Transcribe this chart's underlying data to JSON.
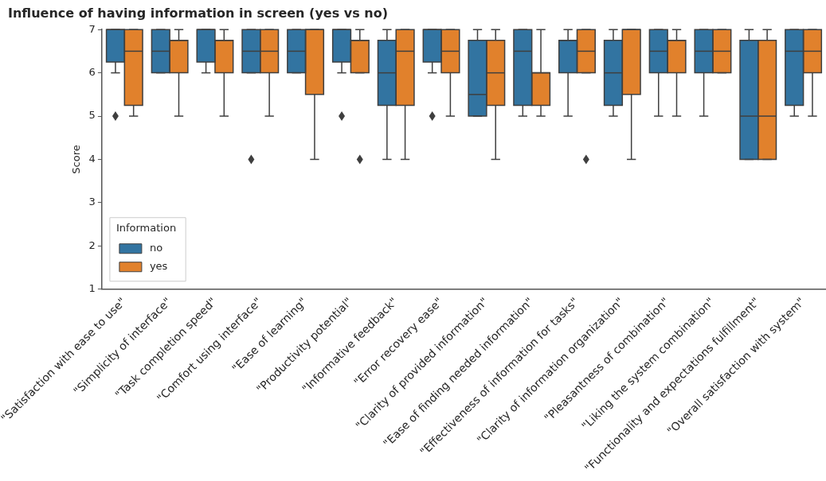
{
  "chart_data": {
    "type": "box",
    "title": "Influence of having information in screen (yes vs no)",
    "ylabel": "Score",
    "legend_title": "Information",
    "legend": "bottom left",
    "grid": false,
    "categories": [
      "\"Satisfaction with ease to use\"",
      "\"Simplicity of interface\"",
      "\"Task completion speed\"",
      "\"Comfort using interface\"",
      "\"Ease of learning\"",
      "\"Productivity potential\"",
      "\"Informative feedback\"",
      "\"Error recovery ease\"",
      "\"Clarity of provided information\"",
      "\"Ease of finding needed information\"",
      "\"Effectiveness of information for tasks\"",
      "\"Clarity of information organization\"",
      "\"Pleasantness of combination\"",
      "\"Liking the system combination\"",
      "\"Functionality and expectations fulfillment\"",
      "\"Overall satisfaction with system\""
    ],
    "ylim": [
      1,
      7
    ],
    "yticks": [
      1,
      2,
      3,
      4,
      5,
      6,
      7
    ],
    "series": [
      {
        "name": "no",
        "color": "#3274a1",
        "boxes": [
          {
            "low": 6,
            "q1": 6.25,
            "median": 7,
            "q3": 7,
            "high": 7,
            "outliers": [
              5
            ]
          },
          {
            "low": 6,
            "q1": 6,
            "median": 6.5,
            "q3": 7,
            "high": 7
          },
          {
            "low": 6,
            "q1": 6.25,
            "median": 7,
            "q3": 7,
            "high": 7
          },
          {
            "low": 6,
            "q1": 6,
            "median": 6.5,
            "q3": 7,
            "high": 7,
            "outliers": [
              4
            ]
          },
          {
            "low": 6,
            "q1": 6,
            "median": 6.5,
            "q3": 7,
            "high": 7
          },
          {
            "low": 6,
            "q1": 6.25,
            "median": 7,
            "q3": 7,
            "high": 7,
            "outliers": [
              5
            ]
          },
          {
            "low": 4,
            "q1": 5.25,
            "median": 6,
            "q3": 6.75,
            "high": 7
          },
          {
            "low": 6,
            "q1": 6.25,
            "median": 7,
            "q3": 7,
            "high": 7,
            "outliers": [
              5
            ]
          },
          {
            "low": 5,
            "q1": 5,
            "median": 5.5,
            "q3": 6.75,
            "high": 7
          },
          {
            "low": 5,
            "q1": 5.25,
            "median": 6.5,
            "q3": 7,
            "high": 7
          },
          {
            "low": 5,
            "q1": 6,
            "median": 6.75,
            "q3": 6.75,
            "high": 7
          },
          {
            "low": 5,
            "q1": 5.25,
            "median": 6,
            "q3": 6.75,
            "high": 7
          },
          {
            "low": 5,
            "q1": 6,
            "median": 6.5,
            "q3": 7,
            "high": 7
          },
          {
            "low": 5,
            "q1": 6,
            "median": 6.5,
            "q3": 7,
            "high": 7
          },
          {
            "low": 4,
            "q1": 4,
            "median": 5,
            "q3": 6.75,
            "high": 7
          },
          {
            "low": 5,
            "q1": 5.25,
            "median": 6.5,
            "q3": 7,
            "high": 7
          }
        ]
      },
      {
        "name": "yes",
        "color": "#e1812c",
        "boxes": [
          {
            "low": 5,
            "q1": 5.25,
            "median": 6.5,
            "q3": 7,
            "high": 7
          },
          {
            "low": 5,
            "q1": 6,
            "median": 6.75,
            "q3": 6.75,
            "high": 7
          },
          {
            "low": 5,
            "q1": 6,
            "median": 6.75,
            "q3": 6.75,
            "high": 7
          },
          {
            "low": 5,
            "q1": 6,
            "median": 6.5,
            "q3": 7,
            "high": 7
          },
          {
            "low": 4,
            "q1": 5.5,
            "median": 7,
            "q3": 7,
            "high": 7
          },
          {
            "low": 6,
            "q1": 6,
            "median": 6.75,
            "q3": 6.75,
            "high": 7,
            "outliers": [
              4
            ]
          },
          {
            "low": 4,
            "q1": 5.25,
            "median": 6.5,
            "q3": 7,
            "high": 7
          },
          {
            "low": 5,
            "q1": 6,
            "median": 6.5,
            "q3": 7,
            "high": 7
          },
          {
            "low": 4,
            "q1": 5.25,
            "median": 6,
            "q3": 6.75,
            "high": 7
          },
          {
            "low": 5,
            "q1": 5.25,
            "median": 6,
            "q3": 6,
            "high": 7
          },
          {
            "low": 6,
            "q1": 6,
            "median": 6.5,
            "q3": 7,
            "high": 7,
            "outliers": [
              4
            ]
          },
          {
            "low": 4,
            "q1": 5.5,
            "median": 7,
            "q3": 7,
            "high": 7
          },
          {
            "low": 5,
            "q1": 6,
            "median": 6.75,
            "q3": 6.75,
            "high": 7
          },
          {
            "low": 6,
            "q1": 6,
            "median": 6.5,
            "q3": 7,
            "high": 7
          },
          {
            "low": 4,
            "q1": 4,
            "median": 5,
            "q3": 6.75,
            "high": 7
          },
          {
            "low": 5,
            "q1": 6,
            "median": 6.5,
            "q3": 7,
            "high": 7
          }
        ]
      }
    ]
  }
}
